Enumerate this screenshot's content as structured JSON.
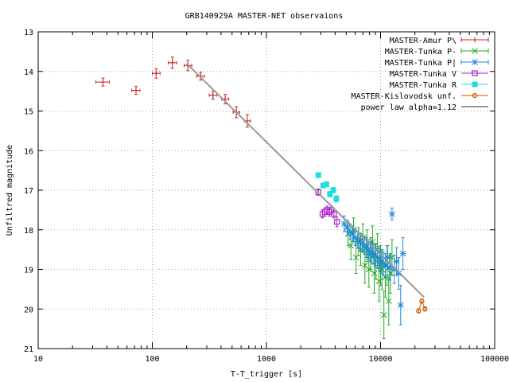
{
  "chart_data": {
    "type": "scatter",
    "title": "GRB140929A MASTER-NET observaions",
    "xlabel": "T-T_trigger [s]",
    "ylabel": "Unfiltred magnitude",
    "x_scale": "log",
    "xlim": [
      10,
      100000
    ],
    "ylim": [
      13,
      21
    ],
    "y_inverted": true,
    "x_ticks": [
      10,
      100,
      1000,
      10000,
      100000
    ],
    "x_tick_labels": [
      "10",
      "100",
      "1000",
      "10000",
      "100000"
    ],
    "y_ticks": [
      13,
      14,
      15,
      16,
      17,
      18,
      19,
      20,
      21
    ],
    "y_tick_labels": [
      "13",
      "14",
      "15",
      "16",
      "17",
      "18",
      "19",
      "20",
      "21"
    ],
    "grid": true,
    "legend_position": "top-right",
    "series": [
      {
        "name": "MASTER-Amur P\\",
        "marker": "plus",
        "color": "#cc2222",
        "points": [
          {
            "x": 37,
            "y": 14.27,
            "dy": 0.1,
            "x_lo": 32,
            "x_hi": 42
          },
          {
            "x": 72,
            "y": 14.48,
            "dy": 0.1,
            "x_lo": 66,
            "x_hi": 78
          },
          {
            "x": 108,
            "y": 14.05,
            "dy": 0.12,
            "x_lo": 100,
            "x_hi": 117
          },
          {
            "x": 150,
            "y": 13.78,
            "dy": 0.14,
            "x_lo": 138,
            "x_hi": 164
          },
          {
            "x": 205,
            "y": 13.85,
            "dy": 0.13,
            "x_lo": 190,
            "x_hi": 222
          },
          {
            "x": 265,
            "y": 14.12,
            "dy": 0.1,
            "x_lo": 245,
            "x_hi": 287
          },
          {
            "x": 340,
            "y": 14.6,
            "dy": 0.1,
            "x_lo": 315,
            "x_hi": 368
          },
          {
            "x": 435,
            "y": 14.7,
            "dy": 0.12,
            "x_lo": 405,
            "x_hi": 468
          },
          {
            "x": 545,
            "y": 15.03,
            "dy": 0.14,
            "x_lo": 510,
            "x_hi": 582
          },
          {
            "x": 680,
            "y": 15.25,
            "dy": 0.16,
            "x_lo": 640,
            "x_hi": 725
          }
        ]
      },
      {
        "name": "MASTER-Tunka P-",
        "marker": "cross",
        "color": "#22aa22",
        "points": [
          {
            "x": 5200,
            "y": 18.1,
            "dy": 0.3
          },
          {
            "x": 5500,
            "y": 18.4,
            "dy": 0.35
          },
          {
            "x": 5800,
            "y": 18.0,
            "dy": 0.3
          },
          {
            "x": 6100,
            "y": 18.7,
            "dy": 0.4
          },
          {
            "x": 6400,
            "y": 18.3,
            "dy": 0.35
          },
          {
            "x": 6700,
            "y": 18.5,
            "dy": 0.4
          },
          {
            "x": 7000,
            "y": 18.2,
            "dy": 0.35
          },
          {
            "x": 7300,
            "y": 18.9,
            "dy": 0.45
          },
          {
            "x": 7600,
            "y": 18.4,
            "dy": 0.4
          },
          {
            "x": 7900,
            "y": 19.0,
            "dy": 0.45
          },
          {
            "x": 8200,
            "y": 18.6,
            "dy": 0.4
          },
          {
            "x": 8500,
            "y": 18.3,
            "dy": 0.4
          },
          {
            "x": 8800,
            "y": 19.1,
            "dy": 0.5
          },
          {
            "x": 9100,
            "y": 18.8,
            "dy": 0.45
          },
          {
            "x": 9400,
            "y": 18.5,
            "dy": 0.4
          },
          {
            "x": 9700,
            "y": 19.3,
            "dy": 0.5
          },
          {
            "x": 10000,
            "y": 18.9,
            "dy": 0.5
          },
          {
            "x": 10300,
            "y": 19.0,
            "dy": 0.5
          },
          {
            "x": 10700,
            "y": 20.15,
            "dy": 0.6
          },
          {
            "x": 11000,
            "y": 19.2,
            "dy": 0.5
          },
          {
            "x": 11400,
            "y": 18.9,
            "dy": 0.5
          },
          {
            "x": 11800,
            "y": 19.8,
            "dy": 0.6
          },
          {
            "x": 12200,
            "y": 19.1,
            "dy": 0.5
          },
          {
            "x": 12600,
            "y": 18.7,
            "dy": 0.45
          }
        ]
      },
      {
        "name": "MASTER-Tunka P|",
        "marker": "star",
        "color": "#2288dd",
        "points": [
          {
            "x": 4800,
            "y": 17.85,
            "dy": 0.2
          },
          {
            "x": 5100,
            "y": 17.95,
            "dy": 0.2
          },
          {
            "x": 5400,
            "y": 18.05,
            "dy": 0.2
          },
          {
            "x": 5700,
            "y": 18.1,
            "dy": 0.2
          },
          {
            "x": 6000,
            "y": 18.2,
            "dy": 0.2
          },
          {
            "x": 6300,
            "y": 18.25,
            "dy": 0.22
          },
          {
            "x": 6600,
            "y": 18.3,
            "dy": 0.22
          },
          {
            "x": 6900,
            "y": 18.35,
            "dy": 0.22
          },
          {
            "x": 7200,
            "y": 18.4,
            "dy": 0.22
          },
          {
            "x": 7500,
            "y": 18.45,
            "dy": 0.25
          },
          {
            "x": 7800,
            "y": 18.5,
            "dy": 0.25
          },
          {
            "x": 8100,
            "y": 18.55,
            "dy": 0.25
          },
          {
            "x": 8400,
            "y": 18.6,
            "dy": 0.25
          },
          {
            "x": 8700,
            "y": 18.62,
            "dy": 0.25
          },
          {
            "x": 9000,
            "y": 18.65,
            "dy": 0.28
          },
          {
            "x": 9400,
            "y": 18.7,
            "dy": 0.28
          },
          {
            "x": 9800,
            "y": 18.75,
            "dy": 0.28
          },
          {
            "x": 10200,
            "y": 18.8,
            "dy": 0.3
          },
          {
            "x": 10600,
            "y": 18.85,
            "dy": 0.3
          },
          {
            "x": 11000,
            "y": 18.9,
            "dy": 0.3
          },
          {
            "x": 11500,
            "y": 18.7,
            "dy": 0.3
          },
          {
            "x": 12000,
            "y": 18.95,
            "dy": 0.32
          },
          {
            "x": 12600,
            "y": 17.6,
            "dy": 0.15
          },
          {
            "x": 13200,
            "y": 19.0,
            "dy": 0.35
          },
          {
            "x": 13800,
            "y": 18.8,
            "dy": 0.35
          },
          {
            "x": 14400,
            "y": 19.1,
            "dy": 0.4
          },
          {
            "x": 15000,
            "y": 19.9,
            "dy": 0.5
          },
          {
            "x": 15700,
            "y": 18.6,
            "dy": 0.4
          }
        ]
      },
      {
        "name": "MASTER-Tunka V",
        "marker": "square",
        "color": "#aa22cc",
        "points": [
          {
            "x": 2850,
            "y": 17.05,
            "dy": 0.08
          },
          {
            "x": 3100,
            "y": 17.6,
            "dy": 0.1
          },
          {
            "x": 3250,
            "y": 17.55,
            "dy": 0.1
          },
          {
            "x": 3400,
            "y": 17.5,
            "dy": 0.1
          },
          {
            "x": 3550,
            "y": 17.55,
            "dy": 0.1
          },
          {
            "x": 3700,
            "y": 17.5,
            "dy": 0.1
          },
          {
            "x": 3900,
            "y": 17.6,
            "dy": 0.1
          },
          {
            "x": 4150,
            "y": 17.8,
            "dy": 0.12
          }
        ]
      },
      {
        "name": "MASTER-Tunka R",
        "marker": "filled-square",
        "color": "#22dddd",
        "points": [
          {
            "x": 2850,
            "y": 16.62,
            "dy": 0.06
          },
          {
            "x": 3150,
            "y": 16.88,
            "dy": 0.06
          },
          {
            "x": 3350,
            "y": 16.85,
            "dy": 0.06
          },
          {
            "x": 3600,
            "y": 17.1,
            "dy": 0.07
          },
          {
            "x": 3850,
            "y": 17.0,
            "dy": 0.07
          },
          {
            "x": 4100,
            "y": 17.22,
            "dy": 0.08
          }
        ]
      },
      {
        "name": "MASTER-Kislovodsk unf.",
        "marker": "circle",
        "color": "#cc5500",
        "connected": true,
        "points": [
          {
            "x": 21500,
            "y": 20.05,
            "dy": 0.05
          },
          {
            "x": 23000,
            "y": 19.8,
            "dy": 0.05
          },
          {
            "x": 24500,
            "y": 20.0,
            "dy": 0.05
          }
        ]
      },
      {
        "name": "power law alpha=1.12",
        "marker": "line",
        "color": "#999999",
        "line": {
          "x0": 200,
          "y0": 13.8,
          "x1": 24000,
          "y1": 19.7
        }
      }
    ]
  }
}
